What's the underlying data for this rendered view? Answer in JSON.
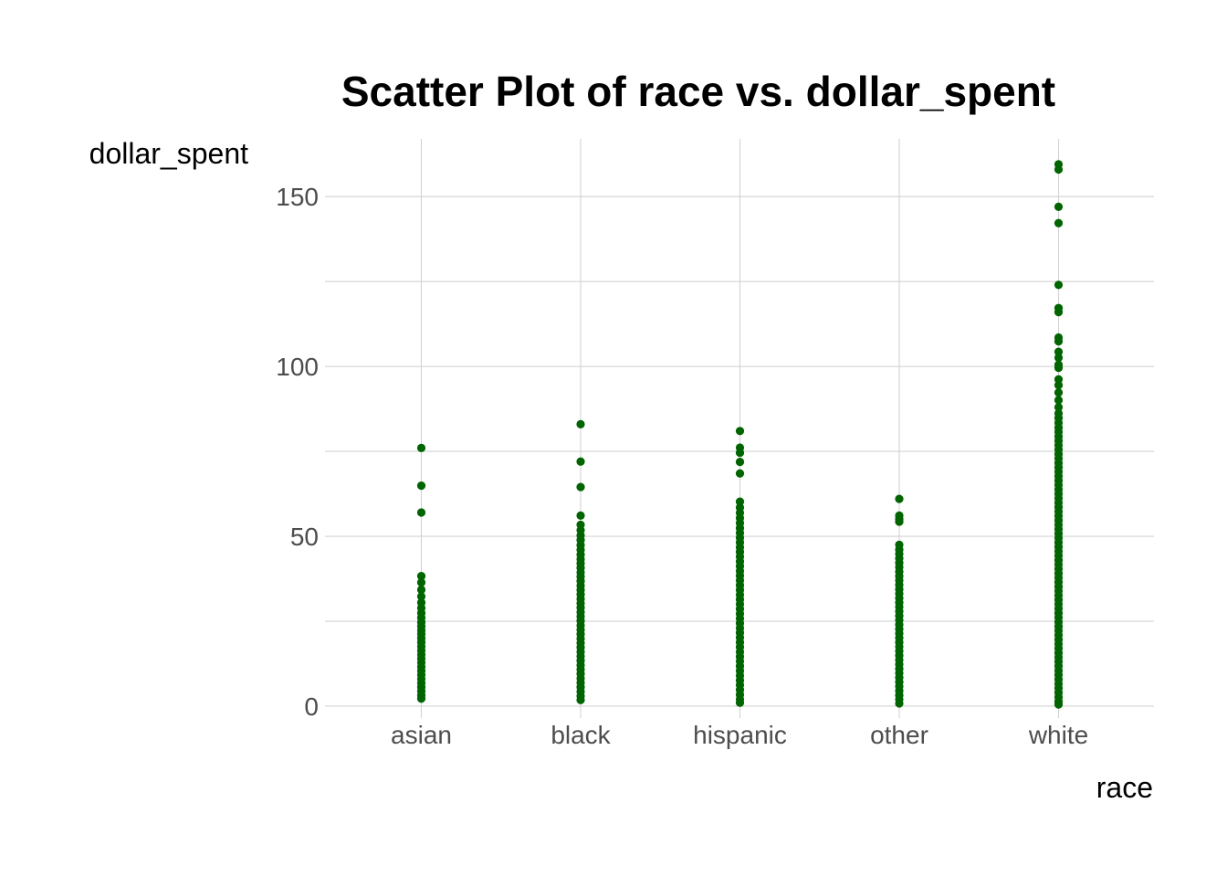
{
  "chart_data": {
    "type": "scatter",
    "title": "Scatter Plot of race vs. dollar_spent",
    "xlabel": "race",
    "ylabel": "dollar_spent",
    "categories": [
      "asian",
      "black",
      "hispanic",
      "other",
      "white"
    ],
    "ylim": [
      -3.5,
      167
    ],
    "yticks": [
      0,
      50,
      100,
      150
    ],
    "grid": true,
    "legend": "none",
    "point_color": "#006400",
    "grid_color": "#d3d3d3",
    "series": [
      {
        "values": [
          [
            76,
            64.9,
            57,
            38.3,
            36.4,
            34.3,
            32.3,
            30.5,
            28.9,
            27.4,
            26,
            24.7,
            23.5,
            22.3,
            21.2,
            20,
            18.8,
            17.6,
            16.4,
            15.2,
            14,
            12.8,
            11.6,
            10.4,
            9.2,
            8,
            6.8,
            5.6,
            4.4,
            3.2,
            2.2
          ],
          [
            83,
            72,
            64.5,
            56.1,
            53.4,
            51.8,
            50.3,
            48.9,
            47.4,
            46,
            44.6,
            43.3,
            42,
            40.7,
            39.4,
            38.1,
            36.8,
            35.5,
            34.2,
            32.9,
            31.6,
            30.3,
            29,
            27.7,
            26.4,
            25.1,
            23.8,
            22.5,
            21.2,
            19.9,
            18.6,
            17.3,
            16,
            14.7,
            13.4,
            12.1,
            10.8,
            9.5,
            8.2,
            6.9,
            5.6,
            4.3,
            3,
            1.8
          ],
          [
            81,
            76.1,
            74.6,
            71.9,
            68.5,
            60.2,
            58.5,
            56.9,
            55.4,
            53.9,
            52.4,
            51,
            49.6,
            48.2,
            46.8,
            45.4,
            44,
            42.6,
            41.2,
            39.8,
            38.4,
            37,
            35.6,
            34.2,
            32.8,
            31.4,
            30,
            28.6,
            27.2,
            25.8,
            24.4,
            23,
            21.6,
            20.2,
            18.8,
            17.4,
            16,
            14.6,
            13.2,
            11.8,
            10.4,
            9,
            7.6,
            6.2,
            4.8,
            3.4,
            2,
            1
          ],
          [
            61,
            56.1,
            55.1,
            54.3,
            47.5,
            46.1,
            44.8,
            43.5,
            42.2,
            40.9,
            39.6,
            38.3,
            37,
            35.7,
            34.4,
            33.1,
            31.8,
            30.5,
            29.2,
            27.9,
            26.6,
            25.3,
            24,
            22.7,
            21.4,
            20.1,
            18.8,
            17.5,
            16.2,
            14.9,
            13.6,
            12.3,
            11,
            9.7,
            8.4,
            7.1,
            5.8,
            4.5,
            3.2,
            2,
            0.8
          ],
          [
            159.5,
            158,
            147,
            142.2,
            124,
            117.2,
            116,
            108.5,
            107.4,
            104.3,
            102.6,
            100.5,
            99.6,
            96.2,
            94.5,
            92.3,
            90.1,
            88,
            86.2,
            84.8,
            83.4,
            82,
            80.7,
            79.4,
            78.1,
            76.8,
            75.5,
            74.2,
            72.9,
            71.6,
            70.3,
            69,
            67.7,
            66.4,
            65.1,
            63.8,
            62.5,
            61.2,
            59.9,
            58.6,
            57.3,
            56,
            54.7,
            53.4,
            52.1,
            50.8,
            49.5,
            48.2,
            46.9,
            45.6,
            44.3,
            43,
            41.7,
            40.4,
            39.1,
            37.8,
            36.5,
            35.2,
            33.9,
            32.6,
            31.3,
            30,
            28.7,
            27.4,
            26.1,
            24.8,
            23.5,
            22.2,
            20.9,
            19.6,
            18.3,
            17,
            15.7,
            14.4,
            13.1,
            11.8,
            10.5,
            9.2,
            7.9,
            6.6,
            5.3,
            4,
            2.7,
            1.4,
            0.5
          ]
        ]
      }
    ]
  }
}
